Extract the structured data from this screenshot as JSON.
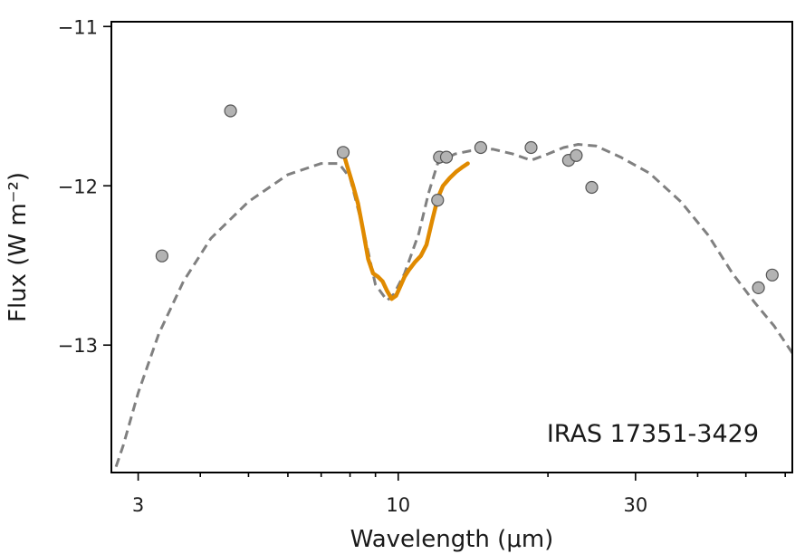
{
  "chart_data": {
    "type": "scatter",
    "title": "",
    "xlabel": "Wavelength (μm)",
    "ylabel": "Flux (W m⁻²)",
    "xscale": "log",
    "xlim": [
      2.65,
      62.0
    ],
    "ylim": [
      -13.8,
      -10.97
    ],
    "x_ticks": [
      {
        "value": 3,
        "label": "3"
      },
      {
        "value": 10,
        "label": "10"
      },
      {
        "value": 30,
        "label": "30"
      }
    ],
    "y_ticks": [
      {
        "value": -11,
        "label": "−11"
      },
      {
        "value": -12,
        "label": "−12"
      },
      {
        "value": -13,
        "label": "−13"
      }
    ],
    "minor_x_ticks": [
      4,
      5,
      6,
      7,
      8,
      9,
      20,
      40,
      50,
      60
    ],
    "annotation": "IRAS 17351-3429",
    "grid": false,
    "series": [
      {
        "name": "photometry",
        "kind": "points",
        "color": "#b3b3b3",
        "edge_color": "#555555",
        "x": [
          3.35,
          4.6,
          7.75,
          12.0,
          12.1,
          12.5,
          14.65,
          18.5,
          22.0,
          22.8,
          24.5,
          53.0,
          56.5
        ],
        "y": [
          -12.44,
          -11.53,
          -11.79,
          -12.09,
          -11.82,
          -11.82,
          -11.76,
          -11.76,
          -11.84,
          -11.81,
          -12.01,
          -12.64,
          -12.56
        ]
      },
      {
        "name": "model SED",
        "kind": "dashed-line",
        "color": "#808080",
        "x": [
          2.65,
          2.8,
          3.0,
          3.3,
          3.7,
          4.2,
          5.0,
          6.0,
          7.0,
          7.6,
          8.0,
          8.5,
          9.0,
          9.5,
          9.8,
          10.3,
          11.0,
          11.5,
          12.0,
          13.0,
          14.0,
          15.5,
          17.0,
          18.5,
          20.0,
          21.5,
          23.0,
          25.0,
          28.0,
          32.0,
          37.0,
          42.0,
          47.0,
          52.0,
          57.0,
          62.0
        ],
        "y": [
          -13.85,
          -13.63,
          -13.3,
          -12.93,
          -12.6,
          -12.33,
          -12.1,
          -11.93,
          -11.86,
          -11.86,
          -11.95,
          -12.27,
          -12.62,
          -12.72,
          -12.68,
          -12.55,
          -12.3,
          -12.05,
          -11.86,
          -11.8,
          -11.78,
          -11.77,
          -11.8,
          -11.84,
          -11.8,
          -11.76,
          -11.74,
          -11.75,
          -11.82,
          -11.92,
          -12.1,
          -12.31,
          -12.55,
          -12.73,
          -12.88,
          -13.05
        ]
      },
      {
        "name": "spectrum",
        "kind": "solid-line",
        "color": "#e08a00",
        "x": [
          7.75,
          7.9,
          8.1,
          8.3,
          8.5,
          8.7,
          8.9,
          9.1,
          9.3,
          9.5,
          9.7,
          9.9,
          10.1,
          10.3,
          10.5,
          10.8,
          11.1,
          11.4,
          11.7,
          12.0,
          12.3,
          12.7,
          13.1,
          13.5,
          13.8
        ],
        "y": [
          -11.79,
          -11.88,
          -11.99,
          -12.11,
          -12.28,
          -12.46,
          -12.55,
          -12.57,
          -12.6,
          -12.66,
          -12.71,
          -12.69,
          -12.63,
          -12.57,
          -12.53,
          -12.48,
          -12.44,
          -12.37,
          -12.22,
          -12.08,
          -12.0,
          -11.95,
          -11.91,
          -11.88,
          -11.86
        ]
      }
    ]
  }
}
